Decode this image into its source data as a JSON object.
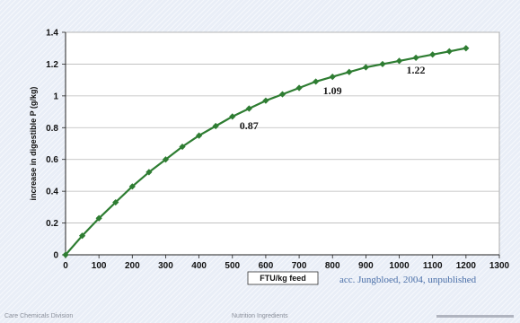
{
  "chart_data": {
    "type": "line",
    "xlabel": "FTU/kg feed",
    "ylabel": "increase in digestible P (g/kg)",
    "xlim": [
      0,
      1300
    ],
    "ylim": [
      0,
      1.4
    ],
    "x_ticks": [
      "0",
      "100",
      "200",
      "300",
      "400",
      "500",
      "600",
      "700",
      "800",
      "900",
      "1000",
      "1100",
      "1200",
      "1300"
    ],
    "y_ticks": [
      "0",
      "0.2",
      "0.4",
      "0.6",
      "0.8",
      "1",
      "1.2",
      "1.4"
    ],
    "grid": "horizontal",
    "series": [
      {
        "color": "#2e7d32",
        "marker": "diamond",
        "points": [
          [
            0,
            0.0
          ],
          [
            50,
            0.12
          ],
          [
            100,
            0.23
          ],
          [
            150,
            0.33
          ],
          [
            200,
            0.43
          ],
          [
            250,
            0.52
          ],
          [
            300,
            0.6
          ],
          [
            350,
            0.68
          ],
          [
            400,
            0.75
          ],
          [
            450,
            0.81
          ],
          [
            500,
            0.87
          ],
          [
            550,
            0.92
          ],
          [
            600,
            0.97
          ],
          [
            650,
            1.01
          ],
          [
            700,
            1.05
          ],
          [
            750,
            1.09
          ],
          [
            800,
            1.12
          ],
          [
            850,
            1.15
          ],
          [
            900,
            1.18
          ],
          [
            950,
            1.2
          ],
          [
            1000,
            1.22
          ],
          [
            1050,
            1.24
          ],
          [
            1100,
            1.26
          ],
          [
            1150,
            1.28
          ],
          [
            1200,
            1.3
          ]
        ]
      }
    ],
    "annotations": [
      {
        "text": "0.87",
        "x": 500,
        "y": 0.87
      },
      {
        "text": "1.09",
        "x": 750,
        "y": 1.09
      },
      {
        "text": "1.22",
        "x": 1000,
        "y": 1.22
      }
    ]
  },
  "credit": "acc. Jungbloed, 2004, unpublished",
  "footer": {
    "left": "Care Chemicals Division",
    "center": "Nutrition Ingredients"
  },
  "colors": {
    "plot_background": "#ffffff",
    "gridline": "#b9b9b9",
    "line": "#2e7d32"
  }
}
